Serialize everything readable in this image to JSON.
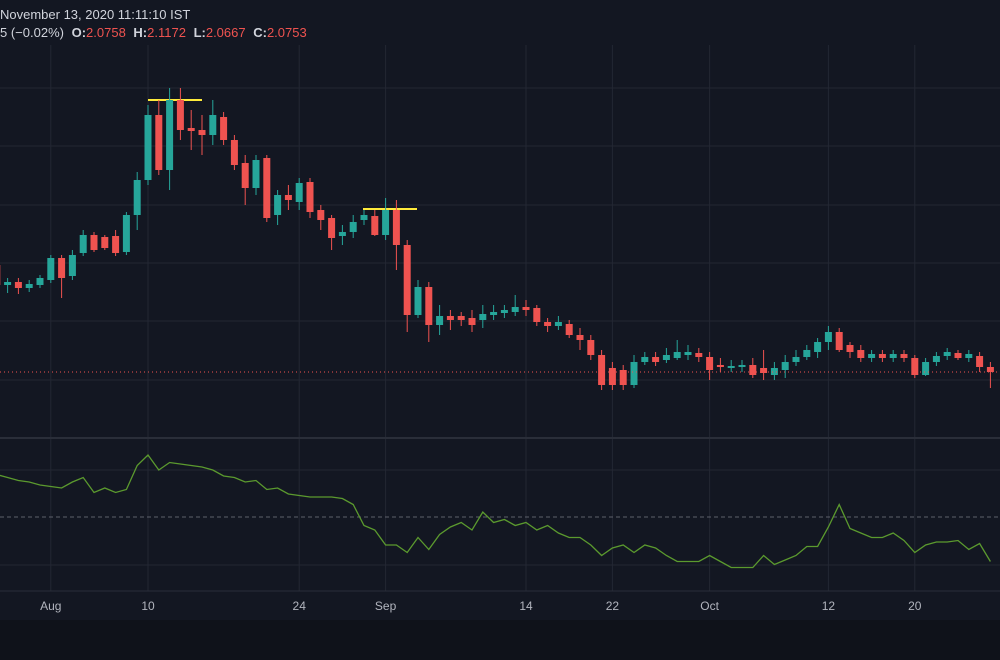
{
  "header": {
    "datetime": "November 13, 2020 11:11:10 IST",
    "change": "5 (−0.02%)",
    "ohlc": [
      {
        "label": "O:",
        "value": "2.0758"
      },
      {
        "label": "H:",
        "value": "2.1172"
      },
      {
        "label": "L:",
        "value": "2.0667"
      },
      {
        "label": "C:",
        "value": "2.0753"
      }
    ]
  },
  "chart_data": [
    {
      "type": "candlestick",
      "up_color": "#26a69a",
      "down_color": "#ef5350",
      "ylim": [
        1.949,
        2.719
      ],
      "categories": [
        null,
        null,
        null,
        null,
        null,
        "Aug",
        null,
        null,
        null,
        null,
        null,
        null,
        null,
        null,
        "10",
        null,
        null,
        null,
        null,
        null,
        null,
        null,
        null,
        null,
        null,
        null,
        null,
        null,
        "24",
        null,
        null,
        null,
        null,
        null,
        null,
        null,
        "Sep",
        null,
        null,
        null,
        null,
        null,
        null,
        null,
        null,
        null,
        null,
        null,
        null,
        "14",
        null,
        null,
        null,
        null,
        null,
        null,
        null,
        "22",
        null,
        null,
        null,
        null,
        null,
        null,
        null,
        null,
        "Oct",
        null,
        null,
        null,
        null,
        null,
        null,
        null,
        null,
        null,
        null,
        "12",
        null,
        null,
        null,
        null,
        null,
        null,
        null,
        "20",
        null,
        null,
        null,
        null,
        null,
        null,
        null
      ],
      "open": [
        2.289,
        2.249,
        2.255,
        2.243,
        2.249,
        2.259,
        2.303,
        2.267,
        2.313,
        2.349,
        2.345,
        2.347,
        2.315,
        2.389,
        2.459,
        2.589,
        2.479,
        2.619,
        2.563,
        2.559,
        2.549,
        2.585,
        2.539,
        2.493,
        2.443,
        2.503,
        2.389,
        2.429,
        2.415,
        2.455,
        2.399,
        2.383,
        2.347,
        2.355,
        2.379,
        2.387,
        2.349,
        2.399,
        2.329,
        2.189,
        2.245,
        2.169,
        2.187,
        2.187,
        2.183,
        2.179,
        2.189,
        2.193,
        2.195,
        2.205,
        2.203,
        2.175,
        2.167,
        2.171,
        2.149,
        2.139,
        2.109,
        2.083,
        2.079,
        2.049,
        2.095,
        2.105,
        2.099,
        2.103,
        2.109,
        2.113,
        2.105,
        2.089,
        2.083,
        2.085,
        2.089,
        2.083,
        2.069,
        2.079,
        2.095,
        2.105,
        2.115,
        2.135,
        2.155,
        2.129,
        2.119,
        2.103,
        2.111,
        2.103,
        2.111,
        2.103,
        2.069,
        2.095,
        2.107,
        2.113,
        2.103,
        2.107,
        2.085
      ],
      "high": [
        2.295,
        2.263,
        2.263,
        2.259,
        2.269,
        2.309,
        2.309,
        2.319,
        2.359,
        2.355,
        2.349,
        2.359,
        2.395,
        2.475,
        2.609,
        2.619,
        2.643,
        2.643,
        2.599,
        2.589,
        2.619,
        2.595,
        2.549,
        2.509,
        2.509,
        2.509,
        2.439,
        2.449,
        2.463,
        2.463,
        2.409,
        2.389,
        2.369,
        2.389,
        2.399,
        2.399,
        2.423,
        2.419,
        2.339,
        2.259,
        2.255,
        2.209,
        2.199,
        2.195,
        2.199,
        2.209,
        2.209,
        2.209,
        2.229,
        2.219,
        2.209,
        2.183,
        2.187,
        2.179,
        2.163,
        2.149,
        2.119,
        2.095,
        2.089,
        2.109,
        2.115,
        2.115,
        2.123,
        2.139,
        2.129,
        2.123,
        2.115,
        2.103,
        2.099,
        2.099,
        2.103,
        2.119,
        2.095,
        2.109,
        2.119,
        2.129,
        2.143,
        2.167,
        2.163,
        2.135,
        2.129,
        2.119,
        2.119,
        2.119,
        2.119,
        2.109,
        2.103,
        2.115,
        2.123,
        2.119,
        2.119,
        2.115,
        2.095
      ],
      "low": [
        2.239,
        2.233,
        2.231,
        2.235,
        2.243,
        2.253,
        2.223,
        2.259,
        2.307,
        2.315,
        2.319,
        2.307,
        2.309,
        2.359,
        2.449,
        2.469,
        2.439,
        2.539,
        2.519,
        2.509,
        2.529,
        2.529,
        2.479,
        2.409,
        2.429,
        2.375,
        2.369,
        2.399,
        2.399,
        2.383,
        2.359,
        2.319,
        2.329,
        2.343,
        2.369,
        2.347,
        2.339,
        2.279,
        2.155,
        2.183,
        2.135,
        2.149,
        2.159,
        2.167,
        2.155,
        2.163,
        2.179,
        2.183,
        2.187,
        2.187,
        2.167,
        2.155,
        2.159,
        2.143,
        2.119,
        2.099,
        2.039,
        2.039,
        2.039,
        2.043,
        2.089,
        2.087,
        2.093,
        2.099,
        2.099,
        2.095,
        2.059,
        2.075,
        2.075,
        2.075,
        2.063,
        2.059,
        2.059,
        2.063,
        2.087,
        2.099,
        2.103,
        2.119,
        2.115,
        2.103,
        2.095,
        2.095,
        2.095,
        2.095,
        2.095,
        2.063,
        2.067,
        2.087,
        2.099,
        2.099,
        2.095,
        2.075,
        2.043
      ],
      "close": [
        2.249,
        2.255,
        2.243,
        2.251,
        2.263,
        2.303,
        2.263,
        2.309,
        2.349,
        2.319,
        2.323,
        2.313,
        2.389,
        2.459,
        2.589,
        2.479,
        2.619,
        2.559,
        2.557,
        2.549,
        2.589,
        2.539,
        2.489,
        2.443,
        2.499,
        2.383,
        2.429,
        2.419,
        2.453,
        2.395,
        2.379,
        2.343,
        2.355,
        2.375,
        2.389,
        2.349,
        2.399,
        2.329,
        2.189,
        2.245,
        2.169,
        2.187,
        2.179,
        2.179,
        2.169,
        2.191,
        2.195,
        2.199,
        2.205,
        2.199,
        2.175,
        2.167,
        2.175,
        2.149,
        2.139,
        2.109,
        2.049,
        2.049,
        2.049,
        2.095,
        2.105,
        2.095,
        2.109,
        2.115,
        2.115,
        2.105,
        2.079,
        2.085,
        2.087,
        2.089,
        2.069,
        2.073,
        2.083,
        2.095,
        2.105,
        2.119,
        2.135,
        2.155,
        2.119,
        2.115,
        2.103,
        2.111,
        2.103,
        2.111,
        2.103,
        2.069,
        2.095,
        2.107,
        2.115,
        2.103,
        2.111,
        2.085,
        2.075
      ]
    },
    {
      "type": "line",
      "color": "#5b9a2e",
      "ylim": [
        0,
        100
      ],
      "values": [
        77,
        75,
        73,
        72,
        70,
        69,
        68,
        72,
        75,
        65,
        68,
        65,
        67,
        83,
        90,
        80,
        85,
        84,
        83,
        82,
        80,
        76,
        75,
        72,
        73,
        67,
        68,
        64,
        63,
        62,
        62,
        62,
        61,
        57,
        43,
        40,
        30,
        30,
        25,
        35,
        27,
        37,
        42,
        45,
        40,
        52,
        45,
        47,
        43,
        45,
        40,
        43,
        38,
        35,
        35,
        30,
        23,
        28,
        30,
        25,
        30,
        28,
        23,
        19,
        19,
        19,
        23,
        19,
        15,
        15,
        15,
        23,
        17,
        20,
        23,
        29,
        29,
        42,
        57,
        41,
        38,
        35,
        35,
        38,
        33,
        25,
        30,
        32,
        32,
        33,
        27,
        31,
        19
      ]
    }
  ]
}
